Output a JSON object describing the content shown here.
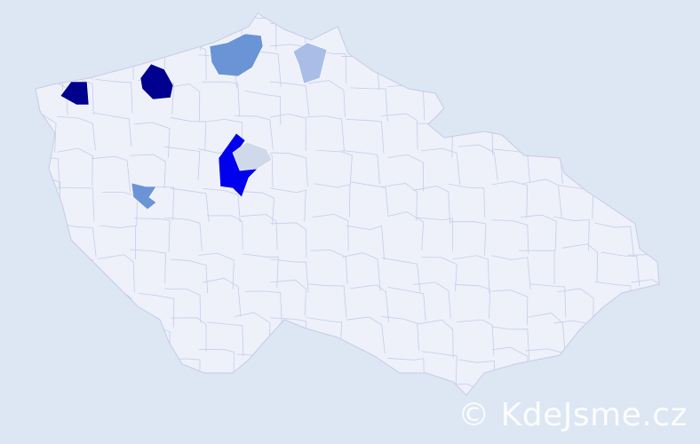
{
  "watermark": "© KdeJsme.cz",
  "colors": {
    "background": "#dde6f3",
    "country_fill": "#eef1fa",
    "border": "#c5cce8",
    "level_darkest": "#00008f",
    "level_dark": "#0000ee",
    "level_medium": "#6a94d6",
    "level_light": "#a9bde6",
    "level_lightest": "#d0d9ea"
  }
}
